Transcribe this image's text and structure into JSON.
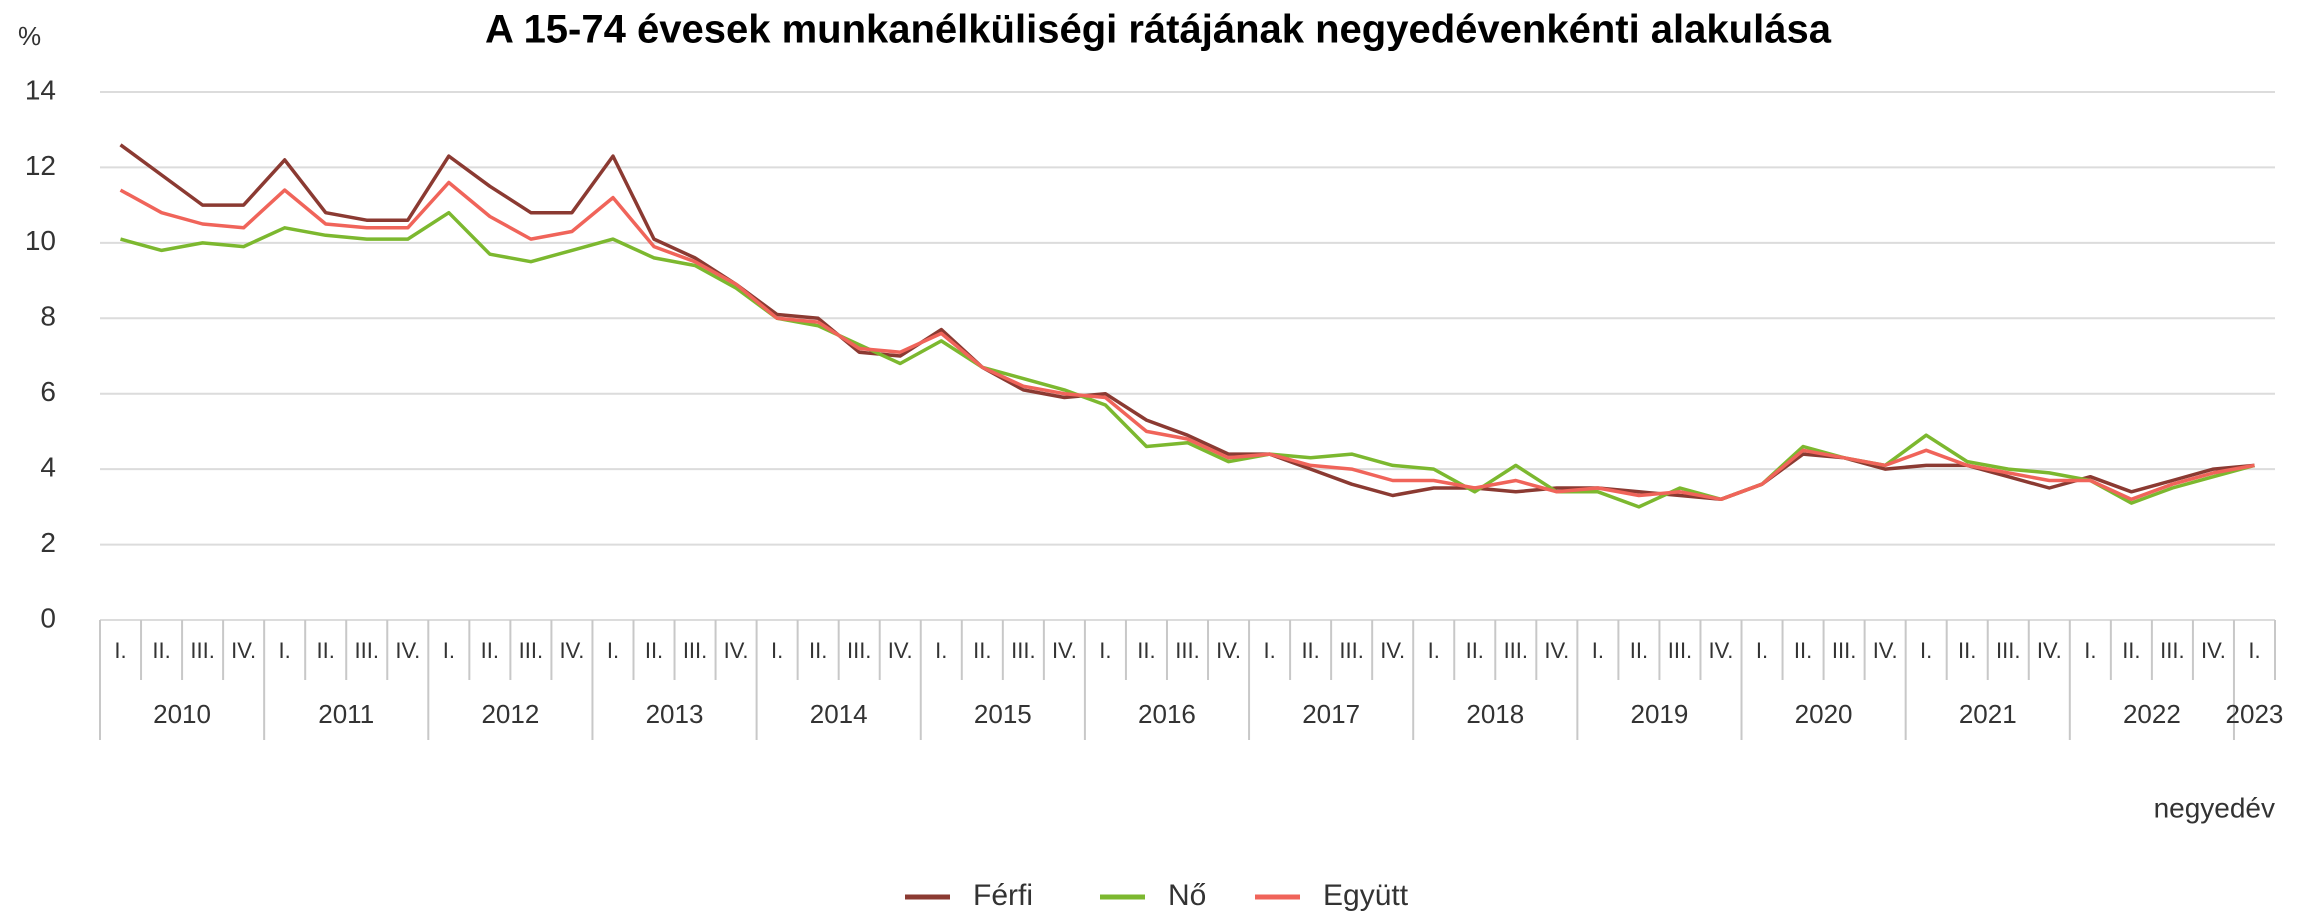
{
  "chart_data": {
    "type": "line",
    "title": "A 15-74 évesek munkanélküliségi rátájának negyedévenkénti alakulása",
    "y_label": "%",
    "x_label": "negyedév",
    "years": [
      "2010",
      "2011",
      "2012",
      "2013",
      "2014",
      "2015",
      "2016",
      "2017",
      "2018",
      "2019",
      "2020",
      "2021",
      "2022",
      "2023"
    ],
    "categories": [
      "I.",
      "II.",
      "III.",
      "IV.",
      "I.",
      "II.",
      "III.",
      "IV.",
      "I.",
      "II.",
      "III.",
      "IV.",
      "I.",
      "II.",
      "III.",
      "IV.",
      "I.",
      "II.",
      "III.",
      "IV.",
      "I.",
      "II.",
      "III.",
      "IV.",
      "I.",
      "II.",
      "III.",
      "IV.",
      "I.",
      "II.",
      "III.",
      "IV.",
      "I.",
      "II.",
      "III.",
      "IV.",
      "I.",
      "II.",
      "III.",
      "IV.",
      "I.",
      "II.",
      "III.",
      "IV.",
      "I.",
      "II.",
      "III.",
      "IV.",
      "I.",
      "II.",
      "III.",
      "IV.",
      "I."
    ],
    "series": [
      {
        "name": "Férfi",
        "color": "#8b3a32",
        "values": [
          12.6,
          11.8,
          11.0,
          11.0,
          12.2,
          10.8,
          10.6,
          10.6,
          12.3,
          11.5,
          10.8,
          10.8,
          12.3,
          10.1,
          9.6,
          8.9,
          8.1,
          8.0,
          7.1,
          7.0,
          7.7,
          6.7,
          6.1,
          5.9,
          6.0,
          5.3,
          4.9,
          4.4,
          4.4,
          4.0,
          3.6,
          3.3,
          3.5,
          3.5,
          3.4,
          3.5,
          3.5,
          3.4,
          3.3,
          3.2,
          3.6,
          4.4,
          4.3,
          4.0,
          4.1,
          4.1,
          3.8,
          3.5,
          3.8,
          3.4,
          3.7,
          4.0,
          4.1
        ]
      },
      {
        "name": "Nő",
        "color": "#7cb82f",
        "values": [
          10.1,
          9.8,
          10.0,
          9.9,
          10.4,
          10.2,
          10.1,
          10.1,
          10.8,
          9.7,
          9.5,
          9.8,
          10.1,
          9.6,
          9.4,
          8.8,
          8.0,
          7.8,
          7.3,
          6.8,
          7.4,
          6.7,
          6.4,
          6.1,
          5.7,
          4.6,
          4.7,
          4.2,
          4.4,
          4.3,
          4.4,
          4.1,
          4.0,
          3.4,
          4.1,
          3.4,
          3.4,
          3.0,
          3.5,
          3.2,
          3.6,
          4.6,
          4.3,
          4.1,
          4.9,
          4.2,
          4.0,
          3.9,
          3.7,
          3.1,
          3.5,
          3.8,
          4.1
        ]
      },
      {
        "name": "Együtt",
        "color": "#f0645a",
        "values": [
          11.4,
          10.8,
          10.5,
          10.4,
          11.4,
          10.5,
          10.4,
          10.4,
          11.6,
          10.7,
          10.1,
          10.3,
          11.2,
          9.9,
          9.5,
          8.9,
          8.0,
          7.9,
          7.2,
          7.1,
          7.6,
          6.7,
          6.2,
          6.0,
          5.9,
          5.0,
          4.8,
          4.3,
          4.4,
          4.1,
          4.0,
          3.7,
          3.7,
          3.5,
          3.7,
          3.4,
          3.5,
          3.3,
          3.4,
          3.2,
          3.6,
          4.5,
          4.3,
          4.1,
          4.5,
          4.1,
          3.9,
          3.7,
          3.7,
          3.2,
          3.6,
          3.9,
          4.1
        ]
      }
    ],
    "ylim": [
      0,
      14
    ],
    "yticks": [
      0,
      2,
      4,
      6,
      8,
      10,
      12,
      14
    ],
    "grid": true,
    "legend": "bottom"
  }
}
